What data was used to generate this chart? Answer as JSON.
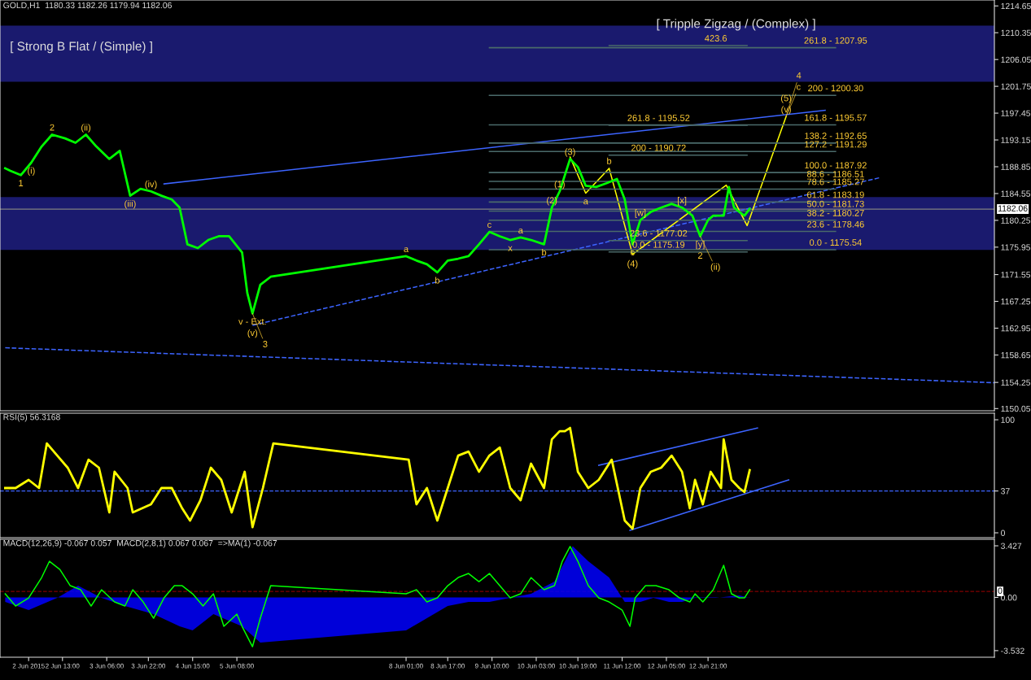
{
  "chart_data": [
    {
      "type": "line",
      "title": "GOLD,H1  1180.33 1182.26 1179.94 1182.06",
      "tick_labels": "y",
      "grid": false,
      "legend": false,
      "xlim": [
        "2015-06-01T13:00",
        "2015-06-17T11:00"
      ],
      "ylim": [
        1149.7,
        1215.6
      ],
      "yticks": [
        1214.65,
        1210.35,
        1206.05,
        1201.75,
        1197.45,
        1193.15,
        1188.85,
        1184.55,
        1180.25,
        1175.95,
        1171.55,
        1167.25,
        1162.95,
        1158.65,
        1154.25,
        1150.05
      ],
      "series": [
        {
          "color": "#00ff00",
          "x": [
            "2015-06-01T15:00",
            "2015-06-01T17:00",
            "2015-06-01T21:00",
            "2015-06-02T01:00",
            "2015-06-02T05:00",
            "2015-06-02T09:00",
            "2015-06-02T14:00",
            "2015-06-02T18:00",
            "2015-06-02T22:00",
            "2015-06-03T02:00",
            "2015-06-03T07:00",
            "2015-06-03T11:00",
            "2015-06-03T15:00",
            "2015-06-03T19:00",
            "2015-06-03T23:00",
            "2015-06-04T03:00",
            "2015-06-04T07:00",
            "2015-06-04T10:00",
            "2015-06-04T13:00",
            "2015-06-04T17:00",
            "2015-06-04T21:00",
            "2015-06-05T01:00",
            "2015-06-05T05:00",
            "2015-06-05T10:00",
            "2015-06-05T12:00",
            "2015-06-05T14:00",
            "2015-06-05T17:00",
            "2015-06-05T21:00",
            "2015-06-08T01:00",
            "2015-06-08T05:00",
            "2015-06-08T09:00",
            "2015-06-08T13:00",
            "2015-06-08T17:00",
            "2015-06-08T21:00",
            "2015-06-09T01:00",
            "2015-06-09T05:00",
            "2015-06-09T09:00",
            "2015-06-09T13:00",
            "2015-06-09T17:00",
            "2015-06-09T21:00",
            "2015-06-10T01:00",
            "2015-06-10T06:00",
            "2015-06-10T09:00",
            "2015-06-10T12:00",
            "2015-06-10T14:00",
            "2015-06-10T16:00",
            "2015-06-10T19:00",
            "2015-06-10T22:00",
            "2015-06-11T02:00",
            "2015-06-11T06:00",
            "2015-06-11T10:00",
            "2015-06-11T13:00",
            "2015-06-11T16:00",
            "2015-06-11T19:00",
            "2015-06-11T23:00",
            "2015-06-12T03:00",
            "2015-06-12T07:00",
            "2015-06-12T11:00",
            "2015-06-12T15:00",
            "2015-06-12T18:00",
            "2015-06-12T21:00",
            "2015-06-12T23:00",
            "2015-06-13T03:00",
            "2015-06-13T05:00",
            "2015-06-13T07:00",
            "2015-06-13T09:00",
            "2015-06-13T11:00",
            "2015-06-13T13:00"
          ],
          "values": [
            1188.6,
            1188.2,
            1187.5,
            1189.5,
            1192.1,
            1194.0,
            1193.4,
            1192.7,
            1194.0,
            1192.1,
            1190.1,
            1191.4,
            1184.2,
            1185.3,
            1184.9,
            1184.2,
            1183.6,
            1182.3,
            1176.4,
            1175.8,
            1177.1,
            1177.7,
            1177.7,
            1175.1,
            1168.6,
            1165.3,
            1169.9,
            1171.2,
            1174.5,
            1173.8,
            1173.2,
            1171.9,
            1173.8,
            1174.1,
            1174.5,
            1176.4,
            1178.4,
            1177.7,
            1177.1,
            1177.5,
            1177.1,
            1176.4,
            1182.3,
            1184.9,
            1187.5,
            1190.1,
            1188.8,
            1185.8,
            1185.6,
            1186.2,
            1186.9,
            1183.6,
            1176.4,
            1180.3,
            1181.6,
            1182.3,
            1182.9,
            1182.3,
            1181.0,
            1177.7,
            1180.3,
            1181.0,
            1181.0,
            1185.6,
            1182.3,
            1181.6,
            1181.0,
            1182.1
          ]
        },
        {
          "color": "#3c64ff",
          "x": [
            "2015-06-04T04:00",
            "2015-06-14T18:00"
          ],
          "values": [
            1186.1,
            1197.9
          ]
        },
        {
          "color": "#3c64ff",
          "line_style": "dashed",
          "x": [
            "2015-06-05T14:00",
            "2015-06-15T15:00"
          ],
          "values": [
            1163.4,
            1187.1
          ]
        },
        {
          "color": "#3c64ff",
          "line_style": "dashed",
          "x": [
            "2015-06-01T15:00",
            "2015-06-17T11:00"
          ],
          "values": [
            1159.8,
            1154.2
          ]
        },
        {
          "color": "#ffff00",
          "x": [
            "2015-06-10T16:00",
            "2015-06-10T22:00",
            "2015-06-11T07:00",
            "2015-06-11T16:00",
            "2015-06-13T04:00",
            "2015-06-13T12:00",
            "2015-06-14T03:00"
          ],
          "values": [
            1190.4,
            1184.6,
            1188.6,
            1174.8,
            1185.9,
            1179.4,
            1196.9
          ]
        },
        {
          "color": "#4a6a6a",
          "x": [
            "2015-06-09T09:00",
            "2015-06-14T22:00"
          ],
          "values": [
            1207.95,
            1207.95
          ]
        },
        {
          "color": "#4a6a6a",
          "x": [
            "2015-06-09T09:00",
            "2015-06-14T22:00"
          ],
          "values": [
            1200.3,
            1200.3
          ]
        },
        {
          "color": "#4a6a6a",
          "x": [
            "2015-06-09T09:00",
            "2015-06-14T22:00"
          ],
          "values": [
            1195.57,
            1195.57
          ]
        },
        {
          "color": "#4a6a6a",
          "x": [
            "2015-06-09T09:00",
            "2015-06-14T22:00"
          ],
          "values": [
            1192.65,
            1192.65
          ]
        },
        {
          "color": "#4a6a6a",
          "x": [
            "2015-06-09T09:00",
            "2015-06-14T22:00"
          ],
          "values": [
            1191.29,
            1191.29
          ]
        },
        {
          "color": "#4a6a6a",
          "x": [
            "2015-06-09T09:00",
            "2015-06-14T22:00"
          ],
          "values": [
            1187.92,
            1187.92
          ]
        },
        {
          "color": "#4a6a6a",
          "x": [
            "2015-06-09T09:00",
            "2015-06-14T22:00"
          ],
          "values": [
            1186.51,
            1186.51
          ]
        },
        {
          "color": "#4a6a6a",
          "x": [
            "2015-06-09T09:00",
            "2015-06-14T22:00"
          ],
          "values": [
            1185.27,
            1185.27
          ]
        },
        {
          "color": "#4a6a6a",
          "x": [
            "2015-06-09T09:00",
            "2015-06-14T22:00"
          ],
          "values": [
            1183.19,
            1183.19
          ]
        },
        {
          "color": "#4a6a6a",
          "x": [
            "2015-06-09T09:00",
            "2015-06-14T22:00"
          ],
          "values": [
            1181.73,
            1181.73
          ]
        },
        {
          "color": "#4a6a6a",
          "x": [
            "2015-06-09T09:00",
            "2015-06-14T22:00"
          ],
          "values": [
            1180.27,
            1180.27
          ]
        },
        {
          "color": "#4a6a6a",
          "x": [
            "2015-06-09T09:00",
            "2015-06-14T22:00"
          ],
          "values": [
            1178.46,
            1178.46
          ]
        },
        {
          "color": "#4a6a6a",
          "x": [
            "2015-06-09T09:00",
            "2015-06-14T22:00"
          ],
          "values": [
            1175.54,
            1175.54
          ]
        },
        {
          "color": "#4a6a6a",
          "x": [
            "2015-06-11T07:00",
            "2015-06-13T12:00"
          ],
          "values": [
            1208.3,
            1208.3
          ]
        },
        {
          "color": "#4a6a6a",
          "x": [
            "2015-06-11T07:00",
            "2015-06-13T12:00"
          ],
          "values": [
            1195.52,
            1195.52
          ]
        },
        {
          "color": "#4a6a6a",
          "x": [
            "2015-06-11T07:00",
            "2015-06-13T12:00"
          ],
          "values": [
            1190.72,
            1190.72
          ]
        },
        {
          "color": "#4a6a6a",
          "x": [
            "2015-06-11T07:00",
            "2015-06-13T12:00"
          ],
          "values": [
            1177.02,
            1177.02
          ]
        },
        {
          "color": "#4a6a6a",
          "x": [
            "2015-06-11T07:00",
            "2015-06-13T12:00"
          ],
          "values": [
            1175.19,
            1175.19
          ]
        }
      ],
      "bands": [
        {
          "axis": "y",
          "from": 1202.5,
          "to": 1211.5,
          "color": "#1a1a6e"
        },
        {
          "axis": "y",
          "from": 1175.5,
          "to": 1184.0,
          "color": "#1a1a6e"
        }
      ],
      "ref_lines": [
        {
          "axis": "y",
          "value": 1182.06,
          "label": "1182.06",
          "color": "#808080"
        }
      ],
      "annotations": [
        "[ Strong B Flat / (Simple) ]",
        "[ Tripple Zigzag / (Complex) ]",
        {
          "text": "1",
          "x": "2015-06-01T21:00",
          "y": 1187.5
        },
        {
          "text": "2",
          "x": "2015-06-02T09:00",
          "y": 1194.0
        },
        {
          "text": "(i)",
          "x": "2015-06-02T01:00",
          "y": 1189.5
        },
        {
          "text": "(ii)",
          "x": "2015-06-02T22:00",
          "y": 1194.0
        },
        {
          "text": "(iii)",
          "x": "2015-06-03T15:00",
          "y": 1184.2
        },
        {
          "text": "(iv)",
          "x": "2015-06-03T23:00",
          "y": 1184.9
        },
        {
          "text": "v - Ext.",
          "x": "2015-06-05T14:00",
          "y": 1165.3
        },
        {
          "text": "(v)",
          "x": "2015-06-05T14:00",
          "y": 1165.3
        },
        {
          "text": "3",
          "x": "2015-06-05T14:00",
          "y": 1165.3
        },
        {
          "text": "a",
          "x": "2015-06-08T01:00",
          "y": 1174.5
        },
        {
          "text": "b",
          "x": "2015-06-08T13:00",
          "y": 1171.9
        },
        {
          "text": "c",
          "x": "2015-06-09T09:00",
          "y": 1178.4
        },
        {
          "text": "x",
          "x": "2015-06-09T17:00",
          "y": 1177.1
        },
        {
          "text": "a",
          "x": "2015-06-09T21:00",
          "y": 1177.5
        },
        {
          "text": "b",
          "x": "2015-06-10T06:00",
          "y": 1176.4
        },
        {
          "text": "(2)",
          "x": "2015-06-10T09:00",
          "y": 1182.3
        },
        {
          "text": "(1)",
          "x": "2015-06-10T12:00",
          "y": 1184.9
        },
        {
          "text": "(3)",
          "x": "2015-06-10T16:00",
          "y": 1190.1
        },
        {
          "text": "a",
          "x": "2015-06-10T22:00",
          "y": 1184.6
        },
        {
          "text": "b",
          "x": "2015-06-11T07:00",
          "y": 1188.6
        },
        {
          "text": "c",
          "x": "2015-06-11T16:00",
          "y": 1176.4
        },
        {
          "text": "(4)",
          "x": "2015-06-11T16:00",
          "y": 1176.4
        },
        {
          "text": "[w]",
          "x": "2015-06-11T19:00",
          "y": 1180.3
        },
        {
          "text": "[x]",
          "x": "2015-06-12T11:00",
          "y": 1182.3
        },
        {
          "text": "[y]",
          "x": "2015-06-12T18:00",
          "y": 1177.7
        },
        {
          "text": "2",
          "x": "2015-06-12T18:00",
          "y": 1177.7
        },
        {
          "text": "(ii)",
          "x": "2015-06-12T18:00",
          "y": 1177.7
        },
        {
          "text": "(v)",
          "x": "2015-06-14T03:00",
          "y": 1196.9
        },
        {
          "text": "(5)",
          "x": "2015-06-14T03:00",
          "y": 1196.9
        },
        {
          "text": "c",
          "x": "2015-06-14T03:00",
          "y": 1196.9
        },
        {
          "text": "4",
          "x": "2015-06-14T03:00",
          "y": 1196.9
        },
        {
          "text": "423.6",
          "x": "2015-06-13T00:00",
          "y": 1208.3
        },
        {
          "text": "261.8 - 1195.52",
          "x": "2015-06-12T02:00",
          "y": 1195.52
        },
        {
          "text": "200 - 1190.72",
          "x": "2015-06-12T02:00",
          "y": 1190.72
        },
        {
          "text": "23.6 - 1177.02",
          "x": "2015-06-12T02:00",
          "y": 1177.02
        },
        {
          "text": "0.0 - 1175.19",
          "x": "2015-06-12T02:00",
          "y": 1175.19
        },
        {
          "text": "261.8 - 1207.95",
          "x": "2015-06-14T22:00",
          "y": 1207.95
        },
        {
          "text": "200 - 1200.30",
          "x": "2015-06-14T22:00",
          "y": 1200.3
        },
        {
          "text": "161.8 - 1195.57",
          "x": "2015-06-14T22:00",
          "y": 1195.57
        },
        {
          "text": "138.2 - 1192.65",
          "x": "2015-06-14T22:00",
          "y": 1192.65
        },
        {
          "text": "127.2 - 1191.29",
          "x": "2015-06-14T22:00",
          "y": 1191.29
        },
        {
          "text": "100.0 - 1187.92",
          "x": "2015-06-14T22:00",
          "y": 1187.92
        },
        {
          "text": "88.6 - 1186.51",
          "x": "2015-06-14T22:00",
          "y": 1186.51
        },
        {
          "text": "78.6 - 1185.27",
          "x": "2015-06-14T22:00",
          "y": 1185.27
        },
        {
          "text": "61.8 - 1183.19",
          "x": "2015-06-14T22:00",
          "y": 1183.19
        },
        {
          "text": "50.0 - 1181.73",
          "x": "2015-06-14T22:00",
          "y": 1181.73
        },
        {
          "text": "38.2 - 1180.27",
          "x": "2015-06-14T22:00",
          "y": 1180.27
        },
        {
          "text": "23.6 - 1178.46",
          "x": "2015-06-14T22:00",
          "y": 1178.46
        },
        {
          "text": "0.0 - 1175.54",
          "x": "2015-06-14T22:00",
          "y": 1175.54
        }
      ]
    },
    {
      "type": "line",
      "title": "RSI(5) 56.3168",
      "tick_labels": "y",
      "grid": false,
      "legend": false,
      "xlim": [
        "2015-06-01T13:00",
        "2015-06-17T11:00"
      ],
      "ylim": [
        -4.3,
        105.8
      ],
      "yticks": [
        0,
        37,
        100
      ],
      "ref_lines": [
        {
          "axis": "y",
          "value": 37,
          "color": "#3c64ff",
          "line_style": "dashed"
        }
      ],
      "series": [
        {
          "color": "#ffff00",
          "x": [
            "2015-06-01T15:00",
            "2015-06-01T19:00",
            "2015-06-02T00:00",
            "2015-06-02T04:00",
            "2015-06-02T07:00",
            "2015-06-02T11:00",
            "2015-06-02T15:00",
            "2015-06-02T19:00",
            "2015-06-02T23:00",
            "2015-06-03T03:00",
            "2015-06-03T07:00",
            "2015-06-03T09:00",
            "2015-06-03T14:00",
            "2015-06-03T16:00",
            "2015-06-03T23:00",
            "2015-06-04T03:00",
            "2015-06-04T07:00",
            "2015-06-04T11:00",
            "2015-06-04T14:00",
            "2015-06-04T18:00",
            "2015-06-04T22:00",
            "2015-06-05T02:00",
            "2015-06-05T06:00",
            "2015-06-05T11:00",
            "2015-06-05T14:00",
            "2015-06-05T18:00",
            "2015-06-05T22:00",
            "2015-06-08T02:00",
            "2015-06-08T05:00",
            "2015-06-08T09:00",
            "2015-06-08T13:00",
            "2015-06-08T17:00",
            "2015-06-08T21:00",
            "2015-06-09T01:00",
            "2015-06-09T05:00",
            "2015-06-09T09:00",
            "2015-06-09T13:00",
            "2015-06-09T17:00",
            "2015-06-09T21:00",
            "2015-06-10T01:00",
            "2015-06-10T06:00",
            "2015-06-10T09:00",
            "2015-06-10T12:00",
            "2015-06-10T14:00",
            "2015-06-10T16:00",
            "2015-06-10T19:00",
            "2015-06-10T23:00",
            "2015-06-11T03:00",
            "2015-06-11T08:00",
            "2015-06-11T13:00",
            "2015-06-11T16:00",
            "2015-06-11T19:00",
            "2015-06-11T23:00",
            "2015-06-12T03:00",
            "2015-06-12T07:00",
            "2015-06-12T11:00",
            "2015-06-12T14:00",
            "2015-06-12T16:00",
            "2015-06-12T19:00",
            "2015-06-12T22:00",
            "2015-06-13T02:00",
            "2015-06-13T03:00",
            "2015-06-13T06:00",
            "2015-06-13T09:00",
            "2015-06-13T11:00",
            "2015-06-13T13:00"
          ],
          "values": [
            39.6,
            39.6,
            46.8,
            39.6,
            79.1,
            68.3,
            57.6,
            39.6,
            64.7,
            57.6,
            18.0,
            54.0,
            39.6,
            18.0,
            25.2,
            39.6,
            39.6,
            21.6,
            10.8,
            28.8,
            57.6,
            46.8,
            18.0,
            54.0,
            5.0,
            39.6,
            79.1,
            64.7,
            25.2,
            39.6,
            10.8,
            39.6,
            68.3,
            71.9,
            54.0,
            68.3,
            75.5,
            39.6,
            28.8,
            61.2,
            39.6,
            82.7,
            89.9,
            89.9,
            92.8,
            54.0,
            39.6,
            46.8,
            64.7,
            10.8,
            3.6,
            39.6,
            54.0,
            57.6,
            68.3,
            54.0,
            21.6,
            46.8,
            25.2,
            54.0,
            39.6,
            82.7,
            46.8,
            39.6,
            36.0,
            55.4
          ]
        },
        {
          "color": "#3c64ff",
          "x": [
            "2015-06-11T03:00",
            "2015-06-13T16:00"
          ],
          "values": [
            59.7,
            92.8
          ]
        },
        {
          "color": "#3c64ff",
          "x": [
            "2015-06-11T15:00",
            "2015-06-14T04:00"
          ],
          "values": [
            2.2,
            46.8
          ]
        }
      ]
    },
    {
      "type": "line",
      "title": "MACD(12,26,9) -0.067 0.057  MACD(2,8,1) 0.067 0.067  =>MA(1) -0.067",
      "grid": false,
      "legend": false,
      "xlim": [
        "2015-06-01T13:00",
        "2015-06-17T11:00"
      ],
      "xticks": [
        {
          "value": "2015-06-02T00:00",
          "label": "2 Jun 2015"
        },
        {
          "value": "2015-06-02T13:00",
          "label": "2 Jun 13:00"
        },
        {
          "value": "2015-06-03T06:00",
          "label": "3 Jun 06:00"
        },
        {
          "value": "2015-06-03T22:00",
          "label": "3 Jun 22:00"
        },
        {
          "value": "2015-06-04T15:00",
          "label": "4 Jun 15:00"
        },
        {
          "value": "2015-06-05T08:00",
          "label": "5 Jun 08:00"
        },
        {
          "value": "2015-06-08T01:00",
          "label": "8 Jun 01:00"
        },
        {
          "value": "2015-06-08T17:00",
          "label": "8 Jun 17:00"
        },
        {
          "value": "2015-06-09T10:00",
          "label": "9 Jun 10:00"
        },
        {
          "value": "2015-06-10T03:00",
          "label": "10 Jun 03:00"
        },
        {
          "value": "2015-06-10T19:00",
          "label": "10 Jun 19:00"
        },
        {
          "value": "2015-06-11T12:00",
          "label": "11 Jun 12:00"
        },
        {
          "value": "2015-06-12T05:00",
          "label": "12 Jun 05:00"
        },
        {
          "value": "2015-06-12T21:00",
          "label": "12 Jun 21:00"
        }
      ],
      "ylim": [
        -3.97,
        3.86
      ],
      "yticks": [
        3.427,
        {
          "value": 0,
          "label": "0.00"
        },
        -3.532
      ],
      "ref_lines": [
        {
          "axis": "y",
          "value": 0.4,
          "label": "0",
          "color": "#800000",
          "line_style": "dashed"
        }
      ],
      "series": [
        {
          "type": "area",
          "color": "#0000ff",
          "x": [
            "2015-06-01T15:00",
            "2015-06-02T00:00",
            "2015-06-02T11:00",
            "2015-06-02T19:00",
            "2015-06-03T04:00",
            "2015-06-03T13:00",
            "2015-06-04T00:00",
            "2015-06-04T10:00",
            "2015-06-04T15:00",
            "2015-06-04T23:00",
            "2015-06-05T10:00",
            "2015-06-05T17:00",
            "2015-06-08T01:00",
            "2015-06-08T09:00",
            "2015-06-08T17:00",
            "2015-06-09T01:00",
            "2015-06-09T09:00",
            "2015-06-09T17:00",
            "2015-06-10T01:00",
            "2015-06-10T10:00",
            "2015-06-10T17:00",
            "2015-06-10T23:00",
            "2015-06-11T07:00",
            "2015-06-11T13:00",
            "2015-06-11T19:00",
            "2015-06-12T00:00",
            "2015-06-12T06:00",
            "2015-06-12T11:00",
            "2015-06-12T16:00",
            "2015-06-13T00:00",
            "2015-06-13T09:00",
            "2015-06-13T13:00"
          ],
          "values": [
            -0.3,
            -0.84,
            -0.03,
            0.78,
            -0.03,
            -0.57,
            -1.11,
            -1.92,
            -2.19,
            -1.11,
            -1.92,
            -3.0,
            -2.19,
            -1.38,
            -0.57,
            -0.3,
            -0.3,
            -0.03,
            0.24,
            1.05,
            3.4,
            2.4,
            1.32,
            -0.3,
            -0.3,
            -0.03,
            -0.3,
            -0.3,
            -0.03,
            -0.03,
            0.13,
            -0.03
          ]
        },
        {
          "color": "#00ff00",
          "x": [
            "2015-06-01T15:00",
            "2015-06-01T19:00",
            "2015-06-02T00:00",
            "2015-06-02T05:00",
            "2015-06-02T08:00",
            "2015-06-02T12:00",
            "2015-06-02T16:00",
            "2015-06-02T20:00",
            "2015-06-03T00:00",
            "2015-06-03T04:00",
            "2015-06-03T09:00",
            "2015-06-03T13:00",
            "2015-06-03T16:00",
            "2015-06-03T20:00",
            "2015-06-04T00:00",
            "2015-06-04T04:00",
            "2015-06-04T08:00",
            "2015-06-04T11:00",
            "2015-06-04T15:00",
            "2015-06-04T19:00",
            "2015-06-04T23:00",
            "2015-06-05T03:00",
            "2015-06-05T08:00",
            "2015-06-05T10:00",
            "2015-06-05T14:00",
            "2015-06-05T17:00",
            "2015-06-05T21:00",
            "2015-06-08T01:00",
            "2015-06-08T05:00",
            "2015-06-08T09:00",
            "2015-06-08T13:00",
            "2015-06-08T17:00",
            "2015-06-08T21:00",
            "2015-06-09T01:00",
            "2015-06-09T05:00",
            "2015-06-09T09:00",
            "2015-06-09T13:00",
            "2015-06-09T17:00",
            "2015-06-09T21:00",
            "2015-06-10T01:00",
            "2015-06-10T06:00",
            "2015-06-10T10:00",
            "2015-06-10T13:00",
            "2015-06-10T16:00",
            "2015-06-10T19:00",
            "2015-06-10T23:00",
            "2015-06-11T03:00",
            "2015-06-11T07:00",
            "2015-06-11T12:00",
            "2015-06-11T15:00",
            "2015-06-11T17:00",
            "2015-06-11T21:00",
            "2015-06-12T01:00",
            "2015-06-12T06:00",
            "2015-06-12T10:00",
            "2015-06-12T14:00",
            "2015-06-12T16:00",
            "2015-06-12T19:00",
            "2015-06-12T23:00",
            "2015-06-13T03:00",
            "2015-06-13T06:00",
            "2015-06-13T09:00",
            "2015-06-13T11:00",
            "2015-06-13T13:00"
          ],
          "values": [
            0.24,
            -0.57,
            -0.03,
            1.32,
            2.4,
            1.86,
            0.78,
            0.51,
            -0.57,
            0.51,
            -0.3,
            -0.57,
            0.51,
            -0.3,
            -1.38,
            -0.03,
            0.78,
            0.78,
            0.24,
            -0.57,
            0.24,
            -1.92,
            -1.11,
            -1.92,
            -3.27,
            -1.38,
            0.78,
            0.24,
            0.51,
            -0.3,
            -0.03,
            0.78,
            1.32,
            1.59,
            1.05,
            1.59,
            0.78,
            -0.03,
            0.24,
            1.32,
            0.51,
            0.78,
            2.4,
            3.38,
            2.4,
            0.78,
            -0.03,
            -0.3,
            -0.84,
            -1.92,
            -0.03,
            0.78,
            0.78,
            0.51,
            -0.03,
            -0.3,
            0.24,
            -0.3,
            0.51,
            2.13,
            0.24,
            -0.03,
            -0.03,
            0.51
          ]
        }
      ]
    }
  ]
}
